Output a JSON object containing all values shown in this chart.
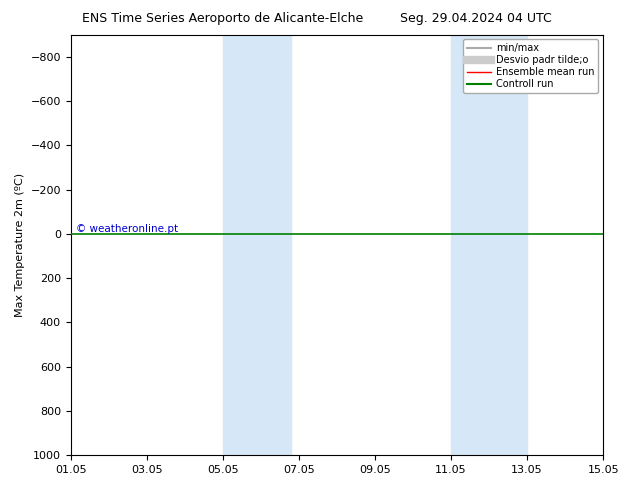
{
  "title_left": "ENS Time Series Aeroporto de Alicante-Elche",
  "title_right": "Seg. 29.04.2024 04 UTC",
  "ylabel": "Max Temperature 2m (ºC)",
  "ylim_top": -900,
  "ylim_bottom": 1000,
  "yticks": [
    -800,
    -600,
    -400,
    -200,
    0,
    200,
    400,
    600,
    800,
    1000
  ],
  "xtick_labels": [
    "01.05",
    "03.05",
    "05.05",
    "07.05",
    "09.05",
    "11.05",
    "13.05",
    "15.05"
  ],
  "xtick_positions": [
    0,
    2,
    4,
    6,
    8,
    10,
    12,
    14
  ],
  "shaded_regions": [
    [
      4.0,
      5.0
    ],
    [
      5.0,
      5.8
    ],
    [
      10.0,
      11.0
    ],
    [
      11.0,
      12.0
    ]
  ],
  "shaded_color": "#d6e8f7",
  "hline_y": 0,
  "hline_color_green": "#008000",
  "watermark_text": "© weatheronline.pt",
  "watermark_color": "#0000cc",
  "legend_entries": [
    {
      "label": "min/max",
      "color": "#aaaaaa",
      "lw": 1.5,
      "style": "-"
    },
    {
      "label": "Desvio padr tilde;o",
      "color": "#cccccc",
      "lw": 6,
      "style": "-"
    },
    {
      "label": "Ensemble mean run",
      "color": "#ff0000",
      "lw": 1,
      "style": "-"
    },
    {
      "label": "Controll run",
      "color": "#008000",
      "lw": 1.5,
      "style": "-"
    }
  ],
  "bg_color": "#ffffff",
  "plot_bg_color": "#ffffff",
  "spine_color": "#000000",
  "title_fontsize": 9,
  "label_fontsize": 8,
  "tick_fontsize": 8
}
